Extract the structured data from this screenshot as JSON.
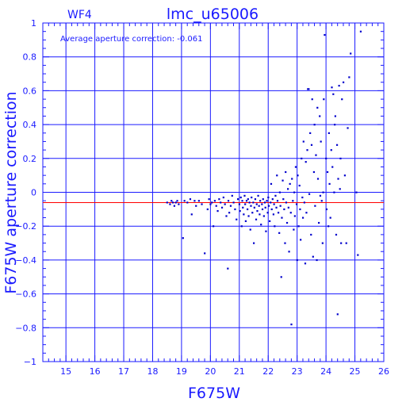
{
  "chart_data": {
    "type": "scatter",
    "title": "lmc_u65006",
    "chip_label": "WF4",
    "annotation": "Average aperture correction: -0.061",
    "xlabel": "F675W",
    "ylabel": "F675W aperture correction",
    "xlim": [
      14.2,
      26
    ],
    "ylim": [
      -1,
      1
    ],
    "xticks": [
      15,
      16,
      17,
      18,
      19,
      20,
      21,
      22,
      23,
      24,
      25,
      26
    ],
    "yticks": [
      -1,
      -0.8,
      -0.6,
      -0.4,
      -0.2,
      0,
      0.2,
      0.4,
      0.6,
      0.8,
      1
    ],
    "xtick_labels": [
      "15",
      "16",
      "17",
      "18",
      "19",
      "20",
      "21",
      "22",
      "23",
      "24",
      "25",
      "26"
    ],
    "ytick_labels": [
      "−1",
      "−0.8",
      "−0.6",
      "−0.4",
      "−0.2",
      "0",
      "0.2",
      "0.4",
      "0.6",
      "0.8",
      "1"
    ],
    "grid": true,
    "reference_line": {
      "y": -0.061,
      "color": "#ff0000"
    },
    "colors": {
      "axes": "#1a1aff",
      "points": "#0000cc",
      "reference_line": "#ff0000"
    },
    "points": [
      [
        18.5,
        -0.06
      ],
      [
        18.6,
        -0.07
      ],
      [
        18.65,
        -0.05
      ],
      [
        18.7,
        -0.06
      ],
      [
        18.75,
        -0.08
      ],
      [
        18.8,
        -0.06
      ],
      [
        18.85,
        -0.05
      ],
      [
        18.9,
        -0.07
      ],
      [
        19.05,
        -0.27
      ],
      [
        19.1,
        -0.05
      ],
      [
        19.2,
        -0.06
      ],
      [
        19.3,
        -0.04
      ],
      [
        19.35,
        -0.13
      ],
      [
        19.45,
        -0.05
      ],
      [
        19.5,
        -0.08
      ],
      [
        19.6,
        -0.05
      ],
      [
        19.7,
        -0.07
      ],
      [
        19.8,
        -0.36
      ],
      [
        19.9,
        -0.1
      ],
      [
        19.95,
        -0.04
      ],
      [
        20.0,
        -0.07
      ],
      [
        20.05,
        -0.06
      ],
      [
        20.1,
        -0.2
      ],
      [
        20.15,
        -0.05
      ],
      [
        20.2,
        -0.08
      ],
      [
        20.25,
        -0.11
      ],
      [
        20.3,
        -0.04
      ],
      [
        20.35,
        -0.06
      ],
      [
        20.4,
        -0.09
      ],
      [
        20.45,
        -0.03
      ],
      [
        20.5,
        -0.07
      ],
      [
        20.55,
        -0.14
      ],
      [
        20.6,
        -0.45
      ],
      [
        20.62,
        -0.05
      ],
      [
        20.65,
        -0.12
      ],
      [
        20.7,
        -0.08
      ],
      [
        20.75,
        -0.02
      ],
      [
        20.8,
        -0.06
      ],
      [
        20.85,
        -0.1
      ],
      [
        20.9,
        -0.16
      ],
      [
        20.95,
        -0.04
      ],
      [
        21.0,
        -0.07
      ],
      [
        21.02,
        -0.11
      ],
      [
        21.05,
        -0.03
      ],
      [
        21.08,
        -0.2
      ],
      [
        21.1,
        -0.05
      ],
      [
        21.12,
        -0.09
      ],
      [
        21.15,
        -0.13
      ],
      [
        21.18,
        -0.02
      ],
      [
        21.2,
        -0.07
      ],
      [
        21.22,
        -0.17
      ],
      [
        21.25,
        -0.05
      ],
      [
        21.28,
        -0.1
      ],
      [
        21.3,
        -0.04
      ],
      [
        21.32,
        -0.14
      ],
      [
        21.35,
        -0.06
      ],
      [
        21.38,
        -0.22
      ],
      [
        21.4,
        -0.08
      ],
      [
        21.42,
        -0.03
      ],
      [
        21.45,
        -0.12
      ],
      [
        21.48,
        -0.06
      ],
      [
        21.5,
        -0.3
      ],
      [
        21.52,
        -0.09
      ],
      [
        21.55,
        -0.04
      ],
      [
        21.58,
        -0.16
      ],
      [
        21.6,
        -0.07
      ],
      [
        21.62,
        -0.11
      ],
      [
        21.65,
        -0.02
      ],
      [
        21.68,
        -0.08
      ],
      [
        21.7,
        -0.13
      ],
      [
        21.72,
        -0.05
      ],
      [
        21.75,
        -0.19
      ],
      [
        21.78,
        -0.07
      ],
      [
        21.8,
        -0.1
      ],
      [
        21.82,
        -0.04
      ],
      [
        21.85,
        -0.14
      ],
      [
        21.88,
        -0.06
      ],
      [
        21.9,
        -0.09
      ],
      [
        21.92,
        -0.23
      ],
      [
        21.95,
        -0.05
      ],
      [
        21.98,
        -0.12
      ],
      [
        22.0,
        -0.03
      ],
      [
        22.02,
        -0.08
      ],
      [
        22.05,
        -0.17
      ],
      [
        22.08,
        -0.06
      ],
      [
        22.1,
        0.05
      ],
      [
        22.12,
        -0.1
      ],
      [
        22.15,
        -0.04
      ],
      [
        22.18,
        -0.13
      ],
      [
        22.2,
        -0.07
      ],
      [
        22.22,
        -0.2
      ],
      [
        22.25,
        -0.02
      ],
      [
        22.28,
        -0.09
      ],
      [
        22.3,
        0.1
      ],
      [
        22.32,
        -0.05
      ],
      [
        22.35,
        -0.12
      ],
      [
        22.38,
        -0.24
      ],
      [
        22.4,
        0.0
      ],
      [
        22.42,
        -0.08
      ],
      [
        22.45,
        -0.5
      ],
      [
        22.47,
        -0.15
      ],
      [
        22.5,
        0.07
      ],
      [
        22.52,
        -0.04
      ],
      [
        22.55,
        -0.1
      ],
      [
        22.58,
        -0.3
      ],
      [
        22.6,
        0.12
      ],
      [
        22.62,
        -0.06
      ],
      [
        22.65,
        -0.18
      ],
      [
        22.68,
        0.02
      ],
      [
        22.7,
        -0.09
      ],
      [
        22.72,
        -0.35
      ],
      [
        22.75,
        0.05
      ],
      [
        22.78,
        -0.12
      ],
      [
        22.8,
        -0.78
      ],
      [
        22.82,
        0.08
      ],
      [
        22.85,
        -0.05
      ],
      [
        22.88,
        -0.22
      ],
      [
        22.9,
        0.0
      ],
      [
        22.92,
        -0.14
      ],
      [
        22.95,
        0.15
      ],
      [
        22.98,
        -0.07
      ],
      [
        23.0,
        -0.4
      ],
      [
        23.02,
        0.1
      ],
      [
        23.05,
        -0.2
      ],
      [
        23.08,
        0.04
      ],
      [
        23.1,
        -0.1
      ],
      [
        23.12,
        -0.28
      ],
      [
        23.15,
        0.2
      ],
      [
        23.18,
        -0.03
      ],
      [
        23.2,
        -0.15
      ],
      [
        23.22,
        0.3
      ],
      [
        23.25,
        -0.06
      ],
      [
        23.28,
        -0.42
      ],
      [
        23.3,
        0.18
      ],
      [
        23.32,
        -0.12
      ],
      [
        23.35,
        0.25
      ],
      [
        23.37,
        0.61
      ],
      [
        23.4,
        0.61
      ],
      [
        23.42,
        -0.01
      ],
      [
        23.45,
        0.35
      ],
      [
        23.48,
        -0.25
      ],
      [
        23.5,
        0.28
      ],
      [
        23.52,
        0.55
      ],
      [
        23.55,
        -0.38
      ],
      [
        23.58,
        0.12
      ],
      [
        23.6,
        0.4
      ],
      [
        23.62,
        -0.08
      ],
      [
        23.65,
        0.22
      ],
      [
        23.68,
        -0.4
      ],
      [
        23.7,
        0.5
      ],
      [
        23.72,
        0.08
      ],
      [
        23.75,
        -0.18
      ],
      [
        23.78,
        0.45
      ],
      [
        23.8,
        -0.02
      ],
      [
        23.82,
        0.3
      ],
      [
        23.85,
        -0.05
      ],
      [
        23.88,
        -0.3
      ],
      [
        23.9,
        0.0
      ],
      [
        23.92,
        0.55
      ],
      [
        23.95,
        0.93
      ],
      [
        24.0,
        0.2
      ],
      [
        24.02,
        -0.1
      ],
      [
        24.05,
        0.12
      ],
      [
        24.08,
        -0.2
      ],
      [
        24.1,
        0.35
      ],
      [
        24.12,
        0.05
      ],
      [
        24.15,
        -0.15
      ],
      [
        24.18,
        0.25
      ],
      [
        24.2,
        0.62
      ],
      [
        24.22,
        0.15
      ],
      [
        24.25,
        0.58
      ],
      [
        24.28,
        0.0
      ],
      [
        24.3,
        0.4
      ],
      [
        24.32,
        0.45
      ],
      [
        24.35,
        -0.25
      ],
      [
        24.38,
        0.28
      ],
      [
        24.4,
        -0.72
      ],
      [
        24.42,
        0.08
      ],
      [
        24.45,
        0.63
      ],
      [
        24.48,
        0.02
      ],
      [
        24.5,
        0.2
      ],
      [
        24.52,
        -0.3
      ],
      [
        24.55,
        0.55
      ],
      [
        24.6,
        0.65
      ],
      [
        24.65,
        0.1
      ],
      [
        24.7,
        -0.3
      ],
      [
        24.75,
        0.38
      ],
      [
        24.8,
        0.68
      ],
      [
        24.85,
        0.82
      ],
      [
        25.1,
        -0.37
      ],
      [
        25.05,
        0.0
      ],
      [
        25.2,
        0.95
      ]
    ]
  }
}
